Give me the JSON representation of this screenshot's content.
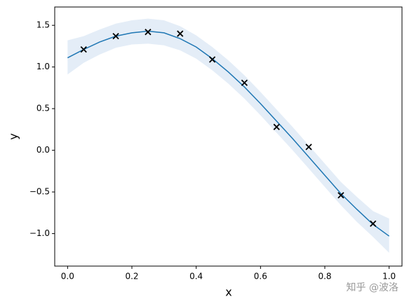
{
  "chart_data": {
    "type": "gp-regression",
    "x_label": "x",
    "y_label": "y",
    "xlim": [
      -0.04,
      1.04
    ],
    "ylim": [
      -1.39,
      1.72
    ],
    "xticks": [
      {
        "value": 0,
        "label": "0.0"
      },
      {
        "value": 0.2,
        "label": "0.2"
      },
      {
        "value": 0.4,
        "label": "0.4"
      },
      {
        "value": 0.6,
        "label": "0.6"
      },
      {
        "value": 0.8,
        "label": "0.8"
      },
      {
        "value": 1,
        "label": "1.0"
      }
    ],
    "yticks": [
      {
        "value": -1,
        "label": "−1.0"
      },
      {
        "value": -0.5,
        "label": "−0.5"
      },
      {
        "value": 0,
        "label": "0.0"
      },
      {
        "value": 0.5,
        "label": "0.5"
      },
      {
        "value": 1,
        "label": "1.0"
      },
      {
        "value": 1.5,
        "label": "1.5"
      }
    ],
    "curve_x": [
      0,
      0.05,
      0.1,
      0.15,
      0.2,
      0.25,
      0.3,
      0.35,
      0.4,
      0.45,
      0.5,
      0.55,
      0.6,
      0.65,
      0.7,
      0.75,
      0.8,
      0.85,
      0.9,
      0.95,
      1.0
    ],
    "mean": [
      1.11,
      1.21,
      1.3,
      1.37,
      1.41,
      1.43,
      1.41,
      1.34,
      1.24,
      1.1,
      0.94,
      0.76,
      0.56,
      0.35,
      0.14,
      -0.08,
      -0.3,
      -0.52,
      -0.71,
      -0.89,
      -1.03
    ],
    "band_lower": [
      0.91,
      1.05,
      1.15,
      1.23,
      1.27,
      1.28,
      1.26,
      1.2,
      1.1,
      0.96,
      0.8,
      0.62,
      0.42,
      0.21,
      0.0,
      -0.22,
      -0.44,
      -0.66,
      -0.86,
      -1.04,
      -1.23
    ],
    "band_upper": [
      1.32,
      1.37,
      1.45,
      1.52,
      1.56,
      1.58,
      1.56,
      1.49,
      1.38,
      1.24,
      1.08,
      0.9,
      0.7,
      0.49,
      0.28,
      0.06,
      -0.16,
      -0.38,
      -0.56,
      -0.73,
      -0.82
    ],
    "mean_color": "#1f77b4",
    "band_color": "#e4edf7",
    "point_color": "#000000",
    "points_x": [
      0.05,
      0.15,
      0.25,
      0.35,
      0.45,
      0.55,
      0.65,
      0.75,
      0.85,
      0.95
    ],
    "points_y": [
      1.21,
      1.37,
      1.42,
      1.4,
      1.09,
      0.81,
      0.28,
      0.04,
      -0.54,
      -0.88
    ],
    "watermark": "知乎 @波洛"
  }
}
